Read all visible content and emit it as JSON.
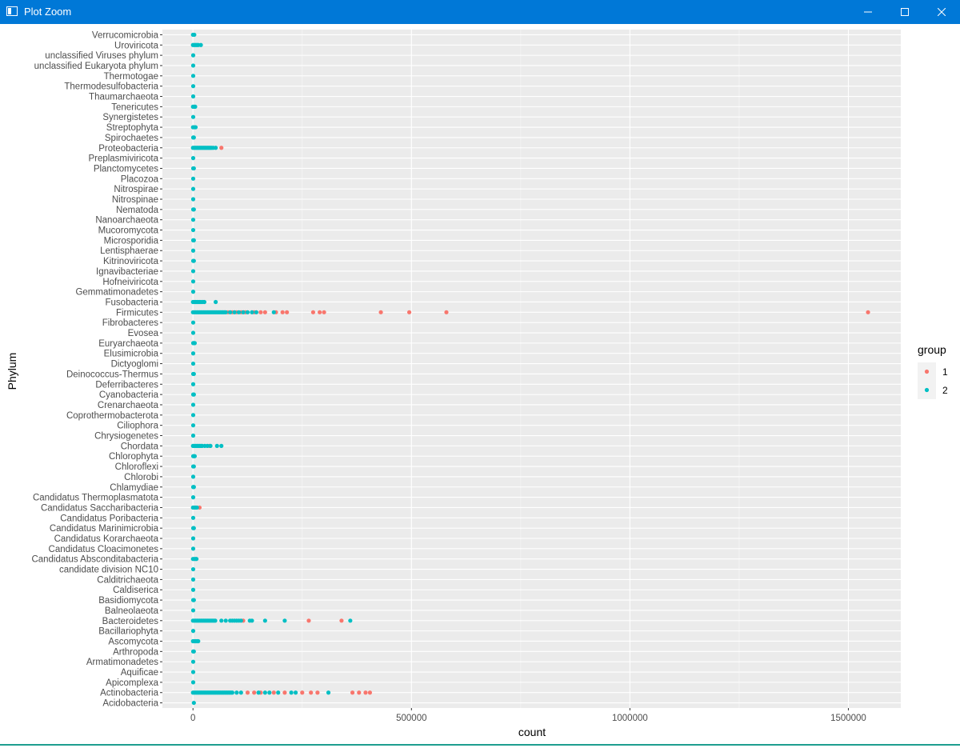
{
  "window": {
    "title": "Plot Zoom",
    "buttons": {
      "minimize": "minimize-icon",
      "maximize": "maximize-icon",
      "close": "close-icon"
    },
    "titlebar_color": "#0078d7"
  },
  "chart_data": {
    "type": "scatter",
    "xlabel": "count",
    "ylabel": "Phylum",
    "xlim": [
      -70000,
      1620000
    ],
    "x_ticks": [
      0,
      500000,
      1000000,
      1500000
    ],
    "x_tick_labels": [
      "0",
      "500000",
      "1000000",
      "1500000"
    ],
    "grid": true,
    "panel_background": "#ebebeb",
    "legend": {
      "title": "group",
      "position": "right",
      "entries": [
        "1",
        "2"
      ]
    },
    "colors": {
      "1": "#f8766d",
      "2": "#00bfc4"
    },
    "categories": [
      "Acidobacteria",
      "Actinobacteria",
      "Apicomplexa",
      "Aquificae",
      "Armatimonadetes",
      "Arthropoda",
      "Ascomycota",
      "Bacillariophyta",
      "Bacteroidetes",
      "Balneolaeota",
      "Basidiomycota",
      "Caldiserica",
      "Calditrichaeota",
      "candidate division NC10",
      "Candidatus Absconditabacteria",
      "Candidatus Cloacimonetes",
      "Candidatus Korarchaeota",
      "Candidatus Marinimicrobia",
      "Candidatus Poribacteria",
      "Candidatus Saccharibacteria",
      "Candidatus Thermoplasmatota",
      "Chlamydiae",
      "Chlorobi",
      "Chloroflexi",
      "Chlorophyta",
      "Chordata",
      "Chrysiogenetes",
      "Ciliophora",
      "Coprothermobacterota",
      "Crenarchaeota",
      "Cyanobacteria",
      "Deferribacteres",
      "Deinococcus-Thermus",
      "Dictyoglomi",
      "Elusimicrobia",
      "Euryarchaeota",
      "Evosea",
      "Fibrobacteres",
      "Firmicutes",
      "Fusobacteria",
      "Gemmatimonadetes",
      "Hofneiviricota",
      "Ignavibacteriae",
      "Kitrinoviricota",
      "Lentisphaerae",
      "Microsporidia",
      "Mucoromycota",
      "Nanoarchaeota",
      "Nematoda",
      "Nitrospinae",
      "Nitrospirae",
      "Placozoa",
      "Planctomycetes",
      "Preplasmiviricota",
      "Proteobacteria",
      "Spirochaetes",
      "Streptophyta",
      "Synergistetes",
      "Tenericutes",
      "Thaumarchaeota",
      "Thermodesulfobacteria",
      "Thermotogae",
      "unclassified Eukaryota phylum",
      "unclassified Viruses phylum",
      "Uroviricota",
      "Verrucomicrobia"
    ],
    "series": [
      {
        "name": "1",
        "points": [
          {
            "y": "Firmicutes",
            "x": [
              80000,
              90000,
              100000,
              110000,
              120000,
              140000,
              155000,
              165000,
              190000,
              205000,
              215000,
              275000,
              290000,
              300000,
              430000,
              495000,
              580000,
              1545000
            ]
          },
          {
            "y": "Actinobacteria",
            "x": [
              125000,
              140000,
              155000,
              185000,
              210000,
              250000,
              270000,
              285000,
              365000,
              380000,
              395000,
              405000
            ]
          },
          {
            "y": "Bacteroidetes",
            "x": [
              115000,
              265000,
              340000
            ]
          },
          {
            "y": "Proteobacteria",
            "x": [
              65000
            ]
          },
          {
            "y": "Candidatus Saccharibacteria",
            "x": [
              15000
            ]
          },
          {
            "y": "Chordata",
            "x": [
              38000
            ]
          }
        ]
      },
      {
        "name": "2",
        "points": [
          {
            "y": "Acidobacteria",
            "x": [
              2000
            ]
          },
          {
            "y": "Actinobacteria",
            "x": [
              0,
              3000,
              6000,
              9000,
              12000,
              15000,
              18000,
              21000,
              24000,
              27000,
              30000,
              33000,
              36000,
              39000,
              42000,
              45000,
              48000,
              51000,
              54000,
              57000,
              60000,
              63000,
              66000,
              69000,
              72000,
              75000,
              78000,
              81000,
              84000,
              87000,
              90000,
              100000,
              110000,
              150000,
              165000,
              175000,
              195000,
              225000,
              235000,
              310000
            ]
          },
          {
            "y": "Apicomplexa",
            "x": [
              500
            ]
          },
          {
            "y": "Aquificae",
            "x": [
              500
            ]
          },
          {
            "y": "Armatimonadetes",
            "x": [
              500
            ]
          },
          {
            "y": "Arthropoda",
            "x": [
              500,
              2000
            ]
          },
          {
            "y": "Ascomycota",
            "x": [
              0,
              3000,
              6000,
              9000,
              12000
            ]
          },
          {
            "y": "Bacillariophyta",
            "x": [
              500
            ]
          },
          {
            "y": "Bacteroidetes",
            "x": [
              0,
              3000,
              6000,
              9000,
              12000,
              15000,
              18000,
              21000,
              24000,
              27000,
              30000,
              33000,
              36000,
              39000,
              42000,
              45000,
              48000,
              51000,
              65000,
              75000,
              85000,
              90000,
              95000,
              100000,
              105000,
              110000,
              130000,
              135000,
              165000,
              210000,
              360000
            ]
          },
          {
            "y": "Balneolaeota",
            "x": [
              500
            ]
          },
          {
            "y": "Basidiomycota",
            "x": [
              500,
              2000
            ]
          },
          {
            "y": "Caldiserica",
            "x": [
              500
            ]
          },
          {
            "y": "Calditrichaeota",
            "x": [
              500
            ]
          },
          {
            "y": "candidate division NC10",
            "x": [
              500
            ]
          },
          {
            "y": "Candidatus Absconditabacteria",
            "x": [
              0,
              3000,
              6000,
              8000
            ]
          },
          {
            "y": "Candidatus Cloacimonetes",
            "x": [
              500
            ]
          },
          {
            "y": "Candidatus Korarchaeota",
            "x": [
              500
            ]
          },
          {
            "y": "Candidatus Marinimicrobia",
            "x": [
              500,
              2000
            ]
          },
          {
            "y": "Candidatus Poribacteria",
            "x": [
              500
            ]
          },
          {
            "y": "Candidatus Saccharibacteria",
            "x": [
              0,
              3000,
              6000,
              9000
            ]
          },
          {
            "y": "Candidatus Thermoplasmatota",
            "x": [
              500
            ]
          },
          {
            "y": "Chlamydiae",
            "x": [
              500,
              2000
            ]
          },
          {
            "y": "Chlorobi",
            "x": [
              500
            ]
          },
          {
            "y": "Chloroflexi",
            "x": [
              500,
              2000
            ]
          },
          {
            "y": "Chlorophyta",
            "x": [
              500,
              2000,
              4000
            ]
          },
          {
            "y": "Chordata",
            "x": [
              0,
              3000,
              6000,
              9000,
              12000,
              15000,
              18000,
              21000,
              27000,
              33000,
              40000,
              55000,
              65000
            ]
          },
          {
            "y": "Chrysiogenetes",
            "x": [
              500
            ]
          },
          {
            "y": "Ciliophora",
            "x": [
              500
            ]
          },
          {
            "y": "Coprothermobacterota",
            "x": [
              500
            ]
          },
          {
            "y": "Crenarchaeota",
            "x": [
              500
            ]
          },
          {
            "y": "Cyanobacteria",
            "x": [
              500,
              2000
            ]
          },
          {
            "y": "Deferribacteres",
            "x": [
              500
            ]
          },
          {
            "y": "Deinococcus-Thermus",
            "x": [
              500,
              2000
            ]
          },
          {
            "y": "Dictyoglomi",
            "x": [
              500
            ]
          },
          {
            "y": "Elusimicrobia",
            "x": [
              500
            ]
          },
          {
            "y": "Euryarchaeota",
            "x": [
              500,
              2000,
              4000
            ]
          },
          {
            "y": "Evosea",
            "x": [
              500
            ]
          },
          {
            "y": "Fibrobacteres",
            "x": [
              500
            ]
          },
          {
            "y": "Firmicutes",
            "x": [
              0,
              3000,
              6000,
              9000,
              12000,
              15000,
              18000,
              21000,
              24000,
              27000,
              30000,
              33000,
              36000,
              39000,
              42000,
              45000,
              48000,
              51000,
              54000,
              57000,
              60000,
              63000,
              66000,
              69000,
              72000,
              75000,
              85000,
              95000,
              105000,
              115000,
              125000,
              135000,
              145000,
              185000
            ]
          },
          {
            "y": "Fusobacteria",
            "x": [
              0,
              3000,
              6000,
              9000,
              12000,
              15000,
              18000,
              22000,
              26000,
              52000
            ]
          },
          {
            "y": "Gemmatimonadetes",
            "x": [
              500
            ]
          },
          {
            "y": "Hofneiviricota",
            "x": [
              500
            ]
          },
          {
            "y": "Ignavibacteriae",
            "x": [
              500
            ]
          },
          {
            "y": "Kitrinoviricota",
            "x": [
              500,
              2000
            ]
          },
          {
            "y": "Lentisphaerae",
            "x": [
              500
            ]
          },
          {
            "y": "Microsporidia",
            "x": [
              500,
              2000
            ]
          },
          {
            "y": "Mucoromycota",
            "x": [
              500
            ]
          },
          {
            "y": "Nanoarchaeota",
            "x": [
              500
            ]
          },
          {
            "y": "Nematoda",
            "x": [
              500,
              2000
            ]
          },
          {
            "y": "Nitrospinae",
            "x": [
              500
            ]
          },
          {
            "y": "Nitrospirae",
            "x": [
              500
            ]
          },
          {
            "y": "Placozoa",
            "x": [
              500
            ]
          },
          {
            "y": "Planctomycetes",
            "x": [
              500,
              2000
            ]
          },
          {
            "y": "Preplasmiviricota",
            "x": [
              500
            ]
          },
          {
            "y": "Proteobacteria",
            "x": [
              0,
              3000,
              6000,
              9000,
              12000,
              15000,
              18000,
              21000,
              24000,
              27000,
              30000,
              33000,
              36000,
              39000,
              42000,
              46000,
              52000
            ]
          },
          {
            "y": "Spirochaetes",
            "x": [
              500,
              2000
            ]
          },
          {
            "y": "Streptophyta",
            "x": [
              0,
              3000,
              6000
            ]
          },
          {
            "y": "Synergistetes",
            "x": [
              500
            ]
          },
          {
            "y": "Tenericutes",
            "x": [
              0,
              3000,
              5000
            ]
          },
          {
            "y": "Thaumarchaeota",
            "x": [
              500
            ]
          },
          {
            "y": "Thermodesulfobacteria",
            "x": [
              500
            ]
          },
          {
            "y": "Thermotogae",
            "x": [
              500
            ]
          },
          {
            "y": "unclassified Eukaryota phylum",
            "x": [
              500
            ]
          },
          {
            "y": "unclassified Viruses phylum",
            "x": [
              500
            ]
          },
          {
            "y": "Uroviricota",
            "x": [
              0,
              3000,
              6000,
              9000,
              12000,
              18000
            ]
          },
          {
            "y": "Verrucomicrobia",
            "x": [
              0,
              3000
            ]
          }
        ]
      }
    ]
  }
}
